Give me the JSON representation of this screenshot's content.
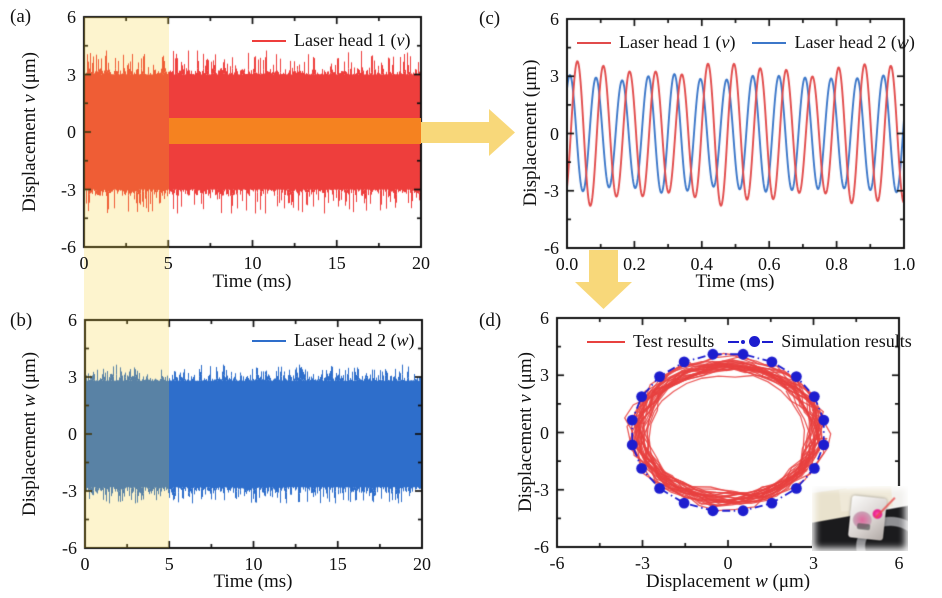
{
  "chart_data": [
    {
      "id": "a",
      "panel_tag": "(a)",
      "type": "line",
      "title": "",
      "xlabel": "Time (ms)",
      "ylabel_pre": "Displacement ",
      "ylabel_var": "v",
      "ylabel_post": " (μm)",
      "xlim": [
        0,
        20
      ],
      "ylim": [
        -6,
        6
      ],
      "xticks": [
        0,
        5,
        10,
        15,
        20
      ],
      "xtick_labels": [
        "0",
        "5",
        "10",
        "15",
        "20"
      ],
      "yticks": [
        -6,
        -3,
        0,
        3,
        6
      ],
      "ytick_labels": [
        "-6",
        "-3",
        "0",
        "3",
        "6"
      ],
      "grid": false,
      "legend_position": "top-right",
      "series": [
        {
          "label_pre": "Laser head 1 (",
          "label_var": "v",
          "label_post": ")",
          "color": "#ee3e3c",
          "signal": "dense noisy sinusoid",
          "frequency_cycles_per_ms": 12.9,
          "amplitude_um": 3.2,
          "peak_um": 4.25
        }
      ],
      "highlight_region": {
        "x0_ms": 0,
        "x1_ms": 5
      }
    },
    {
      "id": "b",
      "panel_tag": "(b)",
      "type": "line",
      "title": "",
      "xlabel": "Time (ms)",
      "ylabel_pre": "Displacement ",
      "ylabel_var": "w",
      "ylabel_post": " (μm)",
      "xlim": [
        0,
        20
      ],
      "ylim": [
        -6,
        6
      ],
      "xticks": [
        0,
        5,
        10,
        15,
        20
      ],
      "xtick_labels": [
        "0",
        "5",
        "10",
        "15",
        "20"
      ],
      "yticks": [
        -6,
        -3,
        0,
        3,
        6
      ],
      "ytick_labels": [
        "-6",
        "-3",
        "0",
        "3",
        "6"
      ],
      "grid": false,
      "legend_position": "top-right",
      "series": [
        {
          "label_pre": "Laser head 2 (",
          "label_var": "w",
          "label_post": ")",
          "color": "#2e6ecb",
          "signal": "dense noisy sinusoid",
          "frequency_cycles_per_ms": 12.9,
          "amplitude_um": 3.0,
          "peak_um": 3.65
        }
      ],
      "highlight_region": {
        "x0_ms": 0,
        "x1_ms": 5
      }
    },
    {
      "id": "c",
      "panel_tag": "(c)",
      "type": "line",
      "title": "",
      "xlabel": "Time (ms)",
      "ylabel_pre": "Displacement (μm)",
      "ylabel_var": "",
      "ylabel_post": "",
      "xlim": [
        0,
        1
      ],
      "ylim": [
        -6,
        6
      ],
      "xticks": [
        0,
        0.2,
        0.4,
        0.6,
        0.8,
        1.0
      ],
      "xtick_labels": [
        "0.0",
        "0.2",
        "0.4",
        "0.6",
        "0.8",
        "1.0"
      ],
      "yticks": [
        -6,
        -3,
        0,
        3,
        6
      ],
      "ytick_labels": [
        "-6",
        "-3",
        "0",
        "3",
        "6"
      ],
      "grid": false,
      "legend_position": "top-center",
      "series": [
        {
          "label_pre": "Laser head 1 (",
          "label_var": "v",
          "label_post": ")",
          "color": "#e14b4b",
          "amplitude_um": 3.4,
          "frequency_cycles_per_ms": 12.9,
          "phase_deg": -52
        },
        {
          "label_pre": "Laser head 2 (",
          "label_var": "w",
          "label_post": ")",
          "color": "#3c77c9",
          "amplitude_um": 2.95,
          "frequency_cycles_per_ms": 12.9,
          "phase_deg": 50
        }
      ]
    },
    {
      "id": "d",
      "panel_tag": "(d)",
      "type": "scatter-line",
      "title": "",
      "xlabel_pre": "Displacement ",
      "xlabel_var": "w",
      "xlabel_post": " (μm)",
      "ylabel_pre": "Displacement ",
      "ylabel_var": "v",
      "ylabel_post": " (μm)",
      "xlim": [
        -6,
        6
      ],
      "ylim": [
        -6,
        6
      ],
      "xticks": [
        -6,
        -3,
        0,
        3,
        6
      ],
      "xtick_labels": [
        "-6",
        "-3",
        "0",
        "3",
        "6"
      ],
      "yticks": [
        -6,
        -3,
        0,
        3,
        6
      ],
      "ytick_labels": [
        "-6",
        "-3",
        "0",
        "3",
        "6"
      ],
      "grid": false,
      "legend_position": "top-center",
      "series": [
        {
          "label": "Test results",
          "color": "#e8413f",
          "style": "solid-band-orbit",
          "w_semi_axis_range_um": [
            2.8,
            3.4
          ],
          "v_semi_axis_range_um": [
            3.15,
            3.85
          ]
        },
        {
          "label": "Simulation results",
          "color": "#1d1dcf",
          "style": "dash-dot-filled-circles",
          "points_wv_um": [
            [
              3.36,
              0.65
            ],
            [
              3.03,
              1.88
            ],
            [
              2.4,
              2.93
            ],
            [
              1.54,
              3.7
            ],
            [
              0.53,
              4.1
            ],
            [
              -0.53,
              4.1
            ],
            [
              -1.54,
              3.7
            ],
            [
              -2.4,
              2.93
            ],
            [
              -3.03,
              1.88
            ],
            [
              -3.36,
              0.65
            ],
            [
              -3.36,
              -0.65
            ],
            [
              -3.03,
              -1.88
            ],
            [
              -2.4,
              -2.93
            ],
            [
              -1.54,
              -3.7
            ],
            [
              -0.53,
              -4.1
            ],
            [
              0.53,
              -4.1
            ],
            [
              1.54,
              -3.7
            ],
            [
              2.4,
              -2.93
            ],
            [
              3.03,
              -1.88
            ],
            [
              3.36,
              -0.65
            ]
          ]
        }
      ],
      "inset": "photo of laser vibration test setup"
    }
  ],
  "annotations": {
    "highlight_band": {
      "time_range_ms": [
        0,
        5
      ],
      "spans": "panels a and b",
      "fill": "#f8ce1e",
      "opacity": 0.22
    },
    "flow_band": {
      "color": "#f58220",
      "from": "panel a",
      "to": "panel c"
    },
    "arrows": [
      {
        "direction": "right",
        "color": "#f8d87a"
      },
      {
        "direction": "down",
        "color": "#f8d87a"
      }
    ]
  }
}
